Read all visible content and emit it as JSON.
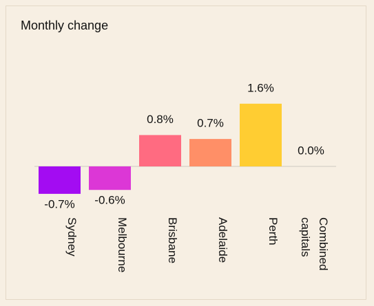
{
  "chart_data": {
    "type": "bar",
    "title": "Monthly change",
    "categories": [
      "Sydney",
      "Melbourne",
      "Brisbane",
      "Adelaide",
      "Perth",
      "Combined capitals"
    ],
    "values": [
      -0.7,
      -0.6,
      0.8,
      0.7,
      1.6,
      0.0
    ],
    "value_labels": [
      "-0.7%",
      "-0.6%",
      "0.8%",
      "0.7%",
      "1.6%",
      "0.0%"
    ],
    "colors": [
      "#a30cf2",
      "#dc37d6",
      "#ff6b81",
      "#ff8f67",
      "#ffcd32",
      "#cccccc"
    ]
  }
}
